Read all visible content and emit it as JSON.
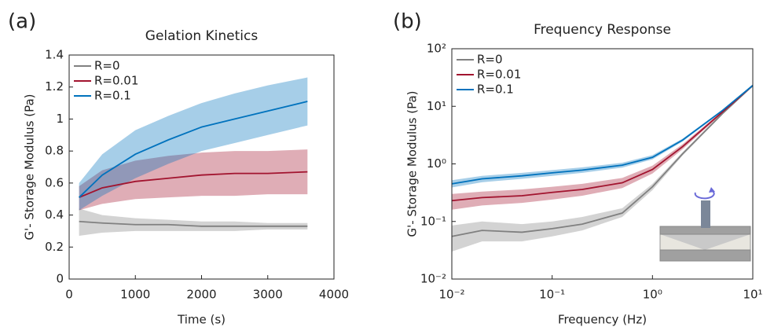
{
  "chart_data": [
    {
      "type": "line",
      "panel_label": "(a)",
      "title": "Gelation Kinetics",
      "xlabel": "Time (s)",
      "ylabel": "G'- Storage Modulus (Pa)",
      "x": [
        150,
        500,
        1000,
        1500,
        2000,
        2500,
        3000,
        3600
      ],
      "xlim": [
        0,
        4000
      ],
      "xticks": [
        0,
        1000,
        2000,
        3000,
        4000
      ],
      "ylim": [
        0,
        1.4
      ],
      "yticks": [
        0,
        0.2,
        0.4,
        0.6,
        0.8,
        1,
        1.2,
        1.4
      ],
      "xscale": "linear",
      "yscale": "linear",
      "legend": "upper left",
      "series": [
        {
          "name": "R=0",
          "color": "#808080",
          "values": [
            0.36,
            0.35,
            0.34,
            0.34,
            0.33,
            0.33,
            0.33,
            0.33
          ],
          "lower": [
            0.27,
            0.29,
            0.3,
            0.3,
            0.3,
            0.3,
            0.31,
            0.31
          ],
          "upper": [
            0.44,
            0.4,
            0.38,
            0.37,
            0.36,
            0.36,
            0.35,
            0.35
          ]
        },
        {
          "name": "R=0.01",
          "color": "#a2142f",
          "values": [
            0.51,
            0.57,
            0.61,
            0.63,
            0.65,
            0.66,
            0.66,
            0.67
          ],
          "lower": [
            0.43,
            0.47,
            0.5,
            0.51,
            0.52,
            0.52,
            0.53,
            0.53
          ],
          "upper": [
            0.58,
            0.68,
            0.74,
            0.77,
            0.79,
            0.8,
            0.8,
            0.81
          ]
        },
        {
          "name": "R=0.1",
          "color": "#0072bd",
          "values": [
            0.51,
            0.65,
            0.78,
            0.87,
            0.95,
            1.0,
            1.05,
            1.11
          ],
          "lower": [
            0.43,
            0.52,
            0.63,
            0.72,
            0.8,
            0.85,
            0.9,
            0.96
          ],
          "upper": [
            0.6,
            0.78,
            0.93,
            1.02,
            1.1,
            1.16,
            1.21,
            1.26
          ]
        }
      ]
    },
    {
      "type": "line",
      "panel_label": "(b)",
      "title": "Frequency Response",
      "xlabel": "Frequency (Hz)",
      "ylabel": "G'- Storage Modulus (Pa)",
      "x": [
        0.01,
        0.02,
        0.05,
        0.1,
        0.2,
        0.5,
        1,
        2,
        5,
        10
      ],
      "xlim": [
        0.01,
        10
      ],
      "xticks": [
        {
          "value": 0.01,
          "label": "10⁻²"
        },
        {
          "value": 0.1,
          "label": "10⁻¹"
        },
        {
          "value": 1,
          "label": "10⁰"
        },
        {
          "value": 10,
          "label": "10¹"
        }
      ],
      "ylim": [
        0.01,
        100
      ],
      "yticks": [
        {
          "value": 0.01,
          "label": "10⁻²"
        },
        {
          "value": 0.1,
          "label": "10⁻¹"
        },
        {
          "value": 1,
          "label": "10⁰"
        },
        {
          "value": 10,
          "label": "10¹"
        },
        {
          "value": 100,
          "label": "10²"
        }
      ],
      "xscale": "log",
      "yscale": "log",
      "legend": "upper left",
      "series": [
        {
          "name": "R=0",
          "color": "#808080",
          "values": [
            0.055,
            0.07,
            0.065,
            0.075,
            0.09,
            0.14,
            0.4,
            1.5,
            7.5,
            23
          ],
          "lower": [
            0.03,
            0.045,
            0.045,
            0.055,
            0.07,
            0.12,
            0.35,
            1.4,
            7.2,
            22
          ],
          "upper": [
            0.085,
            0.1,
            0.09,
            0.1,
            0.12,
            0.17,
            0.45,
            1.6,
            7.8,
            24
          ]
        },
        {
          "name": "R=0.01",
          "color": "#a2142f",
          "values": [
            0.23,
            0.26,
            0.28,
            0.32,
            0.36,
            0.47,
            0.8,
            2.0,
            8,
            23
          ],
          "lower": [
            0.16,
            0.19,
            0.21,
            0.24,
            0.28,
            0.38,
            0.68,
            1.8,
            7.6,
            22
          ],
          "upper": [
            0.3,
            0.33,
            0.36,
            0.4,
            0.45,
            0.57,
            0.93,
            2.2,
            8.4,
            24
          ]
        },
        {
          "name": "R=0.1",
          "color": "#0072bd",
          "values": [
            0.45,
            0.55,
            0.62,
            0.7,
            0.78,
            0.95,
            1.3,
            2.6,
            8.5,
            23
          ],
          "lower": [
            0.39,
            0.48,
            0.55,
            0.62,
            0.7,
            0.86,
            1.2,
            2.45,
            8.2,
            22
          ],
          "upper": [
            0.52,
            0.62,
            0.7,
            0.78,
            0.87,
            1.05,
            1.42,
            2.75,
            8.8,
            24
          ]
        }
      ]
    }
  ]
}
